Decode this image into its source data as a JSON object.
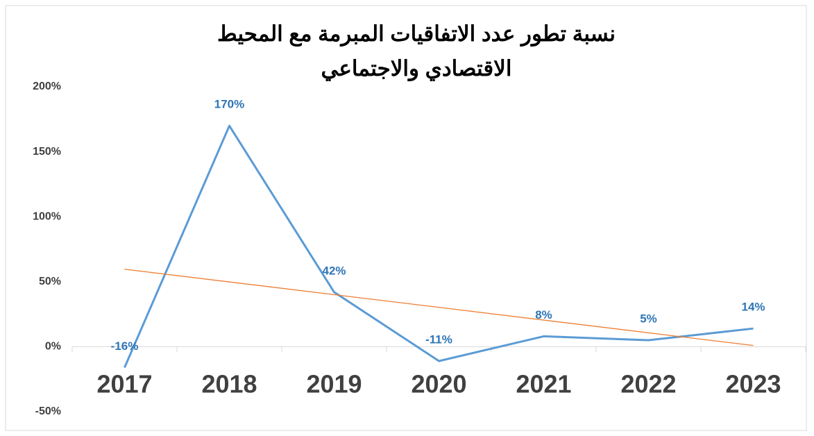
{
  "chart_data": {
    "type": "line",
    "title": "نسبة تطور عدد الاتفاقيات المبرمة مع المحيط الاقتصادي والاجتماعي",
    "categories": [
      "2017",
      "2018",
      "2019",
      "2020",
      "2021",
      "2022",
      "2023"
    ],
    "series": [
      {
        "color": "#5b9bd5",
        "values": [
          -16,
          170,
          42,
          -11,
          8,
          5,
          14
        ],
        "value_labels": [
          "-16%",
          "170%",
          "42%",
          "-11%",
          "8%",
          "5%",
          "14%"
        ]
      }
    ],
    "trendline": {
      "type": "linear",
      "color": "#ed7d31"
    },
    "ylim": [
      -50,
      200
    ],
    "yticks": [
      {
        "value": -50,
        "label": "-50%"
      },
      {
        "value": 0,
        "label": "0%"
      },
      {
        "value": 50,
        "label": "50%"
      },
      {
        "value": 100,
        "label": "100%"
      },
      {
        "value": 150,
        "label": "150%"
      },
      {
        "value": 200,
        "label": "200%"
      }
    ],
    "grid": false
  }
}
